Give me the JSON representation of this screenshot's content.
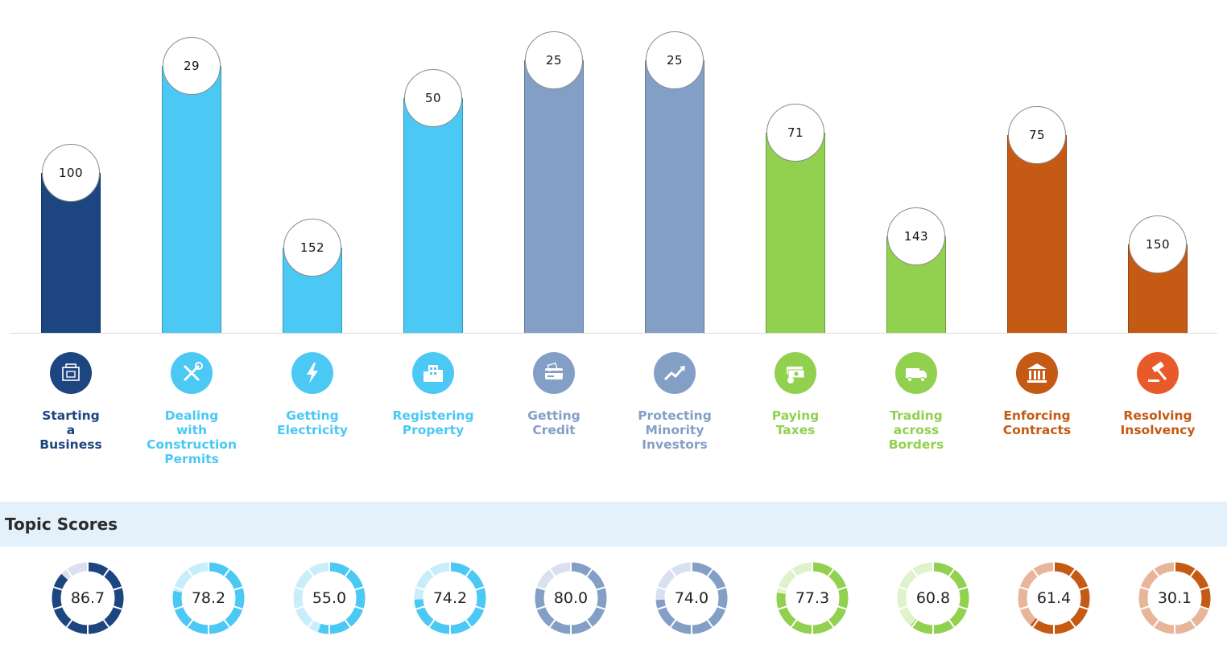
{
  "chart_data": {
    "type": "bar",
    "categories": [
      "Starting a Business",
      "Dealing with Construction Permits",
      "Getting Electricity",
      "Registering Property",
      "Getting Credit",
      "Protecting Minority Investors",
      "Paying Taxes",
      "Trading across Borders",
      "Enforcing Contracts",
      "Resolving Insolvency"
    ],
    "rankings": [
      100,
      29,
      152,
      50,
      25,
      25,
      71,
      143,
      75,
      150
    ],
    "bar_heights_relative": [
      0.6,
      1.0,
      0.32,
      0.88,
      1.02,
      1.02,
      0.75,
      0.36,
      0.74,
      0.33
    ],
    "colors": [
      "#1d4580",
      "#4bc8f4",
      "#4bc8f4",
      "#4bc8f4",
      "#849fc6",
      "#849fc6",
      "#92d050",
      "#92d050",
      "#c45a14",
      "#c45a14"
    ],
    "topic_scores_title": "Topic Scores",
    "scores": [
      "86.7",
      "78.2",
      "55.0",
      "74.2",
      "80.0",
      "74.0",
      "77.3",
      "60.8",
      "61.4",
      "30.1"
    ],
    "score_track_colors": [
      "#d9e0ef",
      "#c8eefc",
      "#c8eefc",
      "#c8eefc",
      "#d9e0ef",
      "#d9e0ef",
      "#e0f2cc",
      "#e0f2cc",
      "#e7b69a",
      "#e7b69a"
    ],
    "grid": false
  },
  "topics": [
    {
      "label": "Starting a Business",
      "icon": "office-building-icon",
      "color": "#1d4580"
    },
    {
      "label": "Dealing with Construction Permits",
      "icon": "wrench-screwdriver-icon",
      "color": "#4bc8f4"
    },
    {
      "label": "Getting Electricity",
      "icon": "lightning-bolt-icon",
      "color": "#4bc8f4"
    },
    {
      "label": "Registering Property",
      "icon": "buildings-icon",
      "color": "#4bc8f4"
    },
    {
      "label": "Getting Credit",
      "icon": "credit-card-icon",
      "color": "#849fc6"
    },
    {
      "label": "Protecting Minority Investors",
      "icon": "trend-arrow-icon",
      "color": "#849fc6"
    },
    {
      "label": "Paying Taxes",
      "icon": "money-stack-icon",
      "color": "#92d050"
    },
    {
      "label": "Trading across Borders",
      "icon": "truck-icon",
      "color": "#92d050"
    },
    {
      "label": "Enforcing Contracts",
      "icon": "courthouse-icon",
      "color": "#c45a14"
    },
    {
      "label": "Resolving Insolvency",
      "icon": "gavel-icon",
      "color": "#e85a2a"
    }
  ],
  "section": {
    "title": "Topic Scores"
  }
}
